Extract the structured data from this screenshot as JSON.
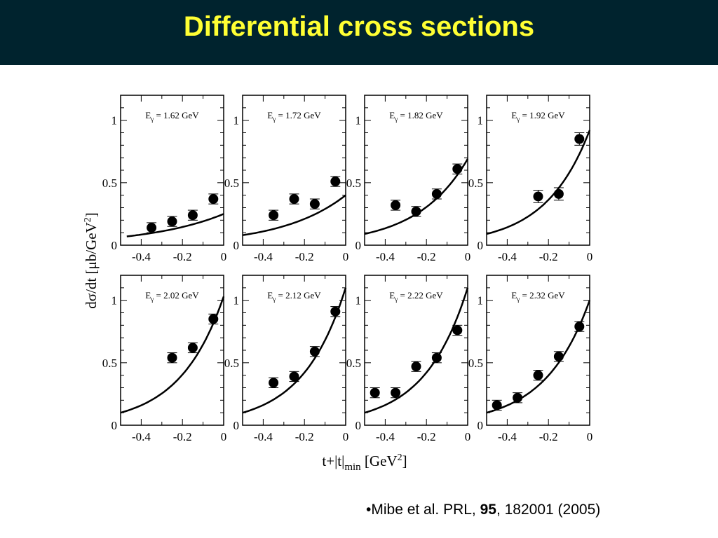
{
  "slide": {
    "title": "Differential cross sections",
    "citation": {
      "bullet": "•",
      "authors": "Mibe et al. PRL, ",
      "volume": "95",
      "rest": ", 182001  (2005)"
    }
  },
  "chart_data": {
    "type": "scatter",
    "layout": "2x4 grid of panels",
    "ylabel": "dσ/dt [μb/GeV²]",
    "xlabel": "t+|t|min [GeV²]",
    "xlabel_parts": {
      "main": "t+|t|",
      "sub": "min",
      "unit": " [GeV",
      "sup": "2",
      "close": "]"
    },
    "ylabel_parts": {
      "main": "dσ/dt [μb/GeV",
      "sup": "2",
      "close": "]"
    },
    "xlim": [
      -0.5,
      0
    ],
    "ylim": [
      0,
      1.2
    ],
    "xticks": [
      "-0.4",
      "-0.2",
      "0"
    ],
    "xtick_values": [
      -0.4,
      -0.2,
      0
    ],
    "yticks": [
      "0",
      "0.5",
      "1"
    ],
    "ytick_values": [
      0,
      0.5,
      1
    ],
    "label_prefix": "E",
    "label_sub": "γ",
    "panels": [
      {
        "label": " = 1.62 GeV",
        "x": [
          -0.35,
          -0.25,
          -0.15,
          -0.05
        ],
        "y": [
          0.14,
          0.19,
          0.24,
          0.37
        ],
        "err": [
          0.04,
          0.04,
          0.04,
          0.04
        ],
        "curve": {
          "x_start": -0.47,
          "y_start": 0.07,
          "y_at_0": 0.25
        }
      },
      {
        "label": " = 1.72 GeV",
        "x": [
          -0.35,
          -0.25,
          -0.15,
          -0.05
        ],
        "y": [
          0.24,
          0.37,
          0.33,
          0.51
        ],
        "err": [
          0.04,
          0.04,
          0.04,
          0.04
        ],
        "curve": {
          "x_start": -0.5,
          "y_start": 0.08,
          "y_at_0": 0.4
        }
      },
      {
        "label": " = 1.82 GeV",
        "x": [
          -0.35,
          -0.25,
          -0.15,
          -0.05
        ],
        "y": [
          0.32,
          0.27,
          0.41,
          0.61
        ],
        "err": [
          0.04,
          0.04,
          0.04,
          0.04
        ],
        "curve": {
          "x_start": -0.5,
          "y_start": 0.09,
          "y_at_0": 0.69
        }
      },
      {
        "label": " = 1.92 GeV",
        "x": [
          -0.25,
          -0.15,
          -0.05
        ],
        "y": [
          0.39,
          0.41,
          0.85
        ],
        "err": [
          0.05,
          0.05,
          0.05
        ],
        "curve": {
          "x_start": -0.5,
          "y_start": 0.09,
          "y_at_0": 0.92
        }
      },
      {
        "label": " = 2.02 GeV",
        "x": [
          -0.25,
          -0.15,
          -0.05
        ],
        "y": [
          0.54,
          0.62,
          0.85
        ],
        "err": [
          0.04,
          0.04,
          0.04
        ],
        "curve": {
          "x_start": -0.5,
          "y_start": 0.1,
          "y_at_0": 1.03
        }
      },
      {
        "label": " = 2.12 GeV",
        "x": [
          -0.35,
          -0.25,
          -0.15,
          -0.05
        ],
        "y": [
          0.34,
          0.39,
          0.59,
          0.91
        ],
        "err": [
          0.04,
          0.04,
          0.04,
          0.04
        ],
        "curve": {
          "x_start": -0.5,
          "y_start": 0.1,
          "y_at_0": 1.1
        }
      },
      {
        "label": " = 2.22 GeV",
        "x": [
          -0.45,
          -0.35,
          -0.25,
          -0.15,
          -0.05
        ],
        "y": [
          0.26,
          0.26,
          0.47,
          0.54,
          0.76
        ],
        "err": [
          0.04,
          0.04,
          0.04,
          0.04,
          0.04
        ],
        "curve": {
          "x_start": -0.5,
          "y_start": 0.1,
          "y_at_0": 1.1
        }
      },
      {
        "label": " = 2.32 GeV",
        "x": [
          -0.45,
          -0.35,
          -0.25,
          -0.15,
          -0.05
        ],
        "y": [
          0.16,
          0.22,
          0.4,
          0.55,
          0.79
        ],
        "err": [
          0.04,
          0.04,
          0.04,
          0.04,
          0.04
        ],
        "curve": {
          "x_start": -0.5,
          "y_start": 0.1,
          "y_at_0": 1.0
        }
      }
    ]
  }
}
